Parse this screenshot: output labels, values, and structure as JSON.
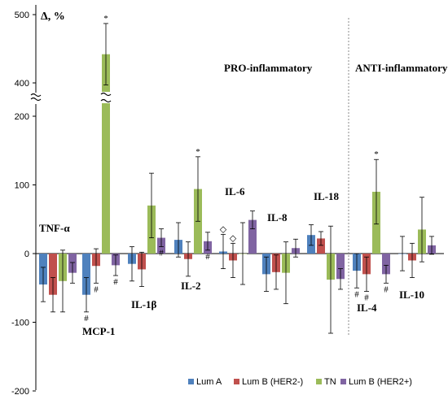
{
  "chart_data": {
    "type": "bar",
    "ylabel": "Δ, %",
    "yticks": [
      "-200",
      "-100",
      "0",
      "100",
      "200",
      "400",
      "500"
    ],
    "ylim": [
      -200,
      500
    ],
    "y_break": [
      230,
      380
    ],
    "regions": [
      "PRO-inflammatory",
      "ANTI-inflammatory"
    ],
    "categories": [
      "TNF-α",
      "MCP-1",
      "IL-1β",
      "IL-2",
      "IL-6",
      "IL-8",
      "IL-18",
      "IL-4",
      "IL-10"
    ],
    "colors": [
      "#4f81bd",
      "#c0504d",
      "#9bbb59",
      "#8064a2"
    ],
    "series": [
      {
        "name": "Lum A",
        "values": [
          -45,
          -60,
          -15,
          20,
          3,
          -30,
          27,
          -25,
          0
        ],
        "errors": [
          25,
          25,
          25,
          25,
          25,
          25,
          15,
          25,
          25
        ],
        "marks": [
          "",
          "#",
          "",
          "",
          "◇",
          "",
          "",
          "#",
          ""
        ]
      },
      {
        "name": "Lum B (HER2-)",
        "values": [
          -60,
          -18,
          -23,
          -8,
          -10,
          -27,
          22,
          -30,
          -10
        ],
        "errors": [
          25,
          25,
          25,
          25,
          25,
          25,
          10,
          25,
          25
        ],
        "marks": [
          "",
          "#",
          "",
          "",
          "◇",
          "",
          "",
          "#",
          ""
        ]
      },
      {
        "name": "TN",
        "values": [
          -40,
          442,
          70,
          94,
          0,
          -28,
          -38,
          90,
          35
        ],
        "errors": [
          45,
          45,
          47,
          47,
          45,
          45,
          78,
          47,
          47
        ],
        "marks": [
          "",
          "*",
          "",
          "*",
          "",
          "",
          "",
          "*",
          ""
        ]
      },
      {
        "name": "Lum B (HER2+)",
        "values": [
          -28,
          -17,
          23,
          18,
          49,
          8,
          -37,
          -30,
          12
        ],
        "errors": [
          15,
          15,
          13,
          13,
          13,
          13,
          15,
          13,
          13
        ],
        "marks": [
          "",
          "#",
          "#",
          "#",
          "",
          "",
          "",
          "#",
          ""
        ]
      }
    ],
    "legend_position": "bottom-right"
  }
}
